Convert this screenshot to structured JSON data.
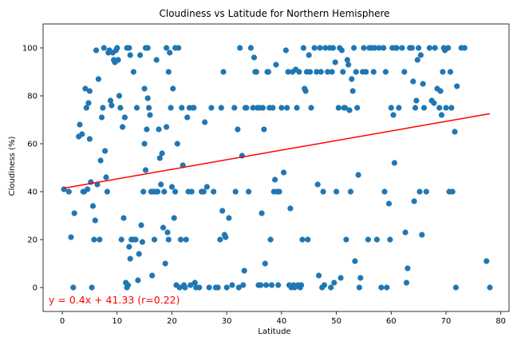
{
  "chart_data": {
    "type": "scatter",
    "title": "Cloudiness vs Latitude for Northern Hemisphere",
    "xlabel": "Latitude",
    "ylabel": "Cloudiness (%)",
    "xlim": [
      -3.5,
      81.5
    ],
    "ylim": [
      -10,
      110
    ],
    "xticks": [
      0,
      10,
      20,
      30,
      40,
      50,
      60,
      70,
      80
    ],
    "yticks": [
      0,
      20,
      40,
      60,
      80,
      100
    ],
    "grid": false,
    "legend": "none",
    "colors": {
      "points": "#1f77b4",
      "regression": "#ff0000",
      "annotation": "#ff0000"
    },
    "regression": {
      "slope": 0.4,
      "intercept": 41.33,
      "x_range": [
        0.3,
        78
      ],
      "label": "y = 0.4x + 41.33 (r=0.22)"
    },
    "points": [
      [
        0.3,
        41
      ],
      [
        1.2,
        40
      ],
      [
        1.6,
        21
      ],
      [
        2.0,
        0
      ],
      [
        2.2,
        31
      ],
      [
        3.0,
        63
      ],
      [
        3.2,
        68
      ],
      [
        3.6,
        64
      ],
      [
        3.8,
        40
      ],
      [
        4.0,
        40
      ],
      [
        4.2,
        83
      ],
      [
        4.4,
        75
      ],
      [
        4.6,
        41
      ],
      [
        4.8,
        77
      ],
      [
        5.0,
        62
      ],
      [
        5.2,
        44
      ],
      [
        5.4,
        0
      ],
      [
        5.6,
        34
      ],
      [
        5.8,
        20
      ],
      [
        6.0,
        28
      ],
      [
        5.0,
        82
      ],
      [
        6.2,
        99
      ],
      [
        6.4,
        43
      ],
      [
        6.6,
        87
      ],
      [
        6.8,
        20
      ],
      [
        7.0,
        53
      ],
      [
        7.2,
        71
      ],
      [
        7.4,
        75
      ],
      [
        7.6,
        100
      ],
      [
        7.8,
        57
      ],
      [
        8.0,
        46
      ],
      [
        8.2,
        40
      ],
      [
        8.4,
        98
      ],
      [
        8.6,
        99
      ],
      [
        8.8,
        78
      ],
      [
        9.0,
        76
      ],
      [
        9.2,
        98
      ],
      [
        9.4,
        95
      ],
      [
        9.6,
        94
      ],
      [
        9.8,
        99
      ],
      [
        10.0,
        100
      ],
      [
        10.2,
        95
      ],
      [
        10.4,
        80
      ],
      [
        10.6,
        75
      ],
      [
        10.8,
        20
      ],
      [
        11.0,
        67
      ],
      [
        11.2,
        29
      ],
      [
        11.4,
        71
      ],
      [
        11.6,
        2
      ],
      [
        11.8,
        0
      ],
      [
        12.0,
        1
      ],
      [
        12.2,
        17
      ],
      [
        12.4,
        12
      ],
      [
        12.6,
        20
      ],
      [
        11.8,
        100
      ],
      [
        12.2,
        100
      ],
      [
        12.4,
        97
      ],
      [
        12.8,
        20
      ],
      [
        13.0,
        90
      ],
      [
        13.2,
        20
      ],
      [
        13.4,
        20
      ],
      [
        13.6,
        75
      ],
      [
        13.8,
        3
      ],
      [
        14.0,
        14
      ],
      [
        14.2,
        97
      ],
      [
        14.4,
        26
      ],
      [
        14.6,
        19
      ],
      [
        14.8,
        40
      ],
      [
        15.0,
        83
      ],
      [
        15.2,
        49
      ],
      [
        15.4,
        66
      ],
      [
        15.6,
        79
      ],
      [
        15.8,
        75
      ],
      [
        16.0,
        72
      ],
      [
        16.2,
        40
      ],
      [
        16.4,
        5
      ],
      [
        16.6,
        40
      ],
      [
        16.8,
        20
      ],
      [
        15.2,
        100
      ],
      [
        15.6,
        100
      ],
      [
        15.0,
        60
      ],
      [
        17.0,
        40
      ],
      [
        17.2,
        95
      ],
      [
        17.4,
        40
      ],
      [
        17.6,
        66
      ],
      [
        17.8,
        54
      ],
      [
        18.0,
        43
      ],
      [
        18.2,
        56
      ],
      [
        18.4,
        25
      ],
      [
        18.6,
        40
      ],
      [
        18.8,
        10
      ],
      [
        19.0,
        67
      ],
      [
        19.2,
        23
      ],
      [
        19.4,
        20
      ],
      [
        19.6,
        98
      ],
      [
        19.8,
        75
      ],
      [
        20.0,
        42
      ],
      [
        20.2,
        83
      ],
      [
        20.4,
        29
      ],
      [
        20.6,
        40
      ],
      [
        20.8,
        1
      ],
      [
        21.0,
        60
      ],
      [
        21.2,
        100
      ],
      [
        21.4,
        0
      ],
      [
        21.6,
        20
      ],
      [
        21.8,
        75
      ],
      [
        22.0,
        51
      ],
      [
        22.2,
        1
      ],
      [
        22.4,
        0
      ],
      [
        22.6,
        20
      ],
      [
        22.8,
        71
      ],
      [
        23.0,
        40
      ],
      [
        23.2,
        75
      ],
      [
        23.4,
        1
      ],
      [
        23.6,
        40
      ],
      [
        23.8,
        75
      ],
      [
        24.0,
        75
      ],
      [
        24.2,
        2
      ],
      [
        24.4,
        0
      ],
      [
        19.0,
        100
      ],
      [
        19.4,
        90
      ],
      [
        20.6,
        100
      ],
      [
        25.0,
        0
      ],
      [
        25.4,
        40
      ],
      [
        25.8,
        40
      ],
      [
        26.0,
        69
      ],
      [
        26.4,
        42
      ],
      [
        26.8,
        0
      ],
      [
        27.2,
        75
      ],
      [
        27.6,
        40
      ],
      [
        28.0,
        0
      ],
      [
        28.4,
        0
      ],
      [
        28.8,
        20
      ],
      [
        29.0,
        75
      ],
      [
        29.2,
        32
      ],
      [
        29.4,
        90
      ],
      [
        29.6,
        22
      ],
      [
        29.8,
        21
      ],
      [
        30.0,
        0
      ],
      [
        30.4,
        29
      ],
      [
        31.0,
        1
      ],
      [
        31.4,
        75
      ],
      [
        31.6,
        40
      ],
      [
        32.0,
        66
      ],
      [
        32.2,
        0
      ],
      [
        32.4,
        100
      ],
      [
        32.8,
        55
      ],
      [
        33.0,
        1
      ],
      [
        33.2,
        7
      ],
      [
        33.4,
        75
      ],
      [
        33.6,
        75
      ],
      [
        34.0,
        40
      ],
      [
        34.4,
        100
      ],
      [
        34.8,
        75
      ],
      [
        35.0,
        96
      ],
      [
        35.2,
        90
      ],
      [
        35.4,
        90
      ],
      [
        35.6,
        75
      ],
      [
        35.8,
        1
      ],
      [
        36.0,
        75
      ],
      [
        36.2,
        1
      ],
      [
        36.4,
        31
      ],
      [
        36.6,
        75
      ],
      [
        36.8,
        66
      ],
      [
        37.0,
        10
      ],
      [
        37.2,
        1
      ],
      [
        37.4,
        90
      ],
      [
        37.6,
        90
      ],
      [
        37.8,
        75
      ],
      [
        38.0,
        20
      ],
      [
        38.2,
        1
      ],
      [
        38.4,
        75
      ],
      [
        38.6,
        40
      ],
      [
        38.8,
        45
      ],
      [
        39.0,
        93
      ],
      [
        39.2,
        40
      ],
      [
        39.4,
        1
      ],
      [
        39.6,
        40
      ],
      [
        40.0,
        75
      ],
      [
        40.4,
        48
      ],
      [
        40.8,
        99
      ],
      [
        41.0,
        75
      ],
      [
        41.2,
        90
      ],
      [
        41.4,
        1
      ],
      [
        41.6,
        33
      ],
      [
        41.8,
        0
      ],
      [
        42.0,
        90
      ],
      [
        42.2,
        1
      ],
      [
        42.4,
        0
      ],
      [
        42.6,
        91
      ],
      [
        42.8,
        75
      ],
      [
        43.0,
        1
      ],
      [
        43.2,
        90
      ],
      [
        43.4,
        0
      ],
      [
        43.6,
        1
      ],
      [
        43.8,
        20
      ],
      [
        44.0,
        100
      ],
      [
        44.2,
        83
      ],
      [
        44.4,
        82
      ],
      [
        44.6,
        90
      ],
      [
        44.8,
        20
      ],
      [
        45.0,
        97
      ],
      [
        45.2,
        90
      ],
      [
        45.4,
        75
      ],
      [
        46.0,
        100
      ],
      [
        46.4,
        90
      ],
      [
        46.6,
        43
      ],
      [
        46.8,
        5
      ],
      [
        47.0,
        100
      ],
      [
        47.2,
        90
      ],
      [
        47.4,
        0
      ],
      [
        47.6,
        40
      ],
      [
        47.8,
        1
      ],
      [
        48.0,
        100
      ],
      [
        48.4,
        90
      ],
      [
        48.8,
        100
      ],
      [
        49.0,
        0
      ],
      [
        49.2,
        90
      ],
      [
        49.4,
        100
      ],
      [
        49.6,
        2
      ],
      [
        49.8,
        94
      ],
      [
        50.0,
        40
      ],
      [
        50.4,
        75
      ],
      [
        50.6,
        100
      ],
      [
        50.8,
        4
      ],
      [
        51.0,
        99
      ],
      [
        51.2,
        90
      ],
      [
        51.4,
        75
      ],
      [
        51.6,
        75
      ],
      [
        51.8,
        20
      ],
      [
        52.0,
        95
      ],
      [
        52.2,
        93
      ],
      [
        52.4,
        74
      ],
      [
        52.6,
        40
      ],
      [
        52.8,
        87
      ],
      [
        53.0,
        82
      ],
      [
        53.2,
        100
      ],
      [
        53.4,
        11
      ],
      [
        53.6,
        90
      ],
      [
        53.8,
        75
      ],
      [
        54.0,
        47
      ],
      [
        54.2,
        0
      ],
      [
        54.4,
        4
      ],
      [
        54.8,
        90
      ],
      [
        55.0,
        100
      ],
      [
        55.4,
        90
      ],
      [
        55.8,
        20
      ],
      [
        56.0,
        100
      ],
      [
        56.4,
        100
      ],
      [
        56.8,
        90
      ],
      [
        57.0,
        100
      ],
      [
        57.4,
        20
      ],
      [
        57.8,
        100
      ],
      [
        58.2,
        0
      ],
      [
        58.6,
        100
      ],
      [
        58.8,
        40
      ],
      [
        59.0,
        90
      ],
      [
        59.2,
        0
      ],
      [
        59.6,
        35
      ],
      [
        59.8,
        20
      ],
      [
        60.0,
        75
      ],
      [
        60.2,
        100
      ],
      [
        60.4,
        72
      ],
      [
        60.6,
        52
      ],
      [
        60.8,
        100
      ],
      [
        61.0,
        100
      ],
      [
        61.4,
        75
      ],
      [
        62.0,
        100
      ],
      [
        62.4,
        90
      ],
      [
        62.6,
        23
      ],
      [
        62.8,
        2
      ],
      [
        63.0,
        8
      ],
      [
        63.4,
        100
      ],
      [
        63.8,
        100
      ],
      [
        64.0,
        86
      ],
      [
        64.2,
        36
      ],
      [
        64.4,
        75
      ],
      [
        64.6,
        78
      ],
      [
        64.8,
        95
      ],
      [
        65.0,
        100
      ],
      [
        65.2,
        40
      ],
      [
        65.4,
        97
      ],
      [
        65.6,
        22
      ],
      [
        65.8,
        85
      ],
      [
        66.0,
        75
      ],
      [
        66.4,
        40
      ],
      [
        67.0,
        100
      ],
      [
        67.4,
        78
      ],
      [
        67.8,
        77
      ],
      [
        68.0,
        100
      ],
      [
        68.4,
        83
      ],
      [
        68.8,
        75
      ],
      [
        69.0,
        82
      ],
      [
        69.2,
        72
      ],
      [
        69.4,
        90
      ],
      [
        69.6,
        100
      ],
      [
        69.8,
        99
      ],
      [
        70.0,
        75
      ],
      [
        70.4,
        100
      ],
      [
        70.6,
        40
      ],
      [
        70.8,
        90
      ],
      [
        71.0,
        75
      ],
      [
        71.2,
        40
      ],
      [
        71.6,
        65
      ],
      [
        71.8,
        0
      ],
      [
        72.0,
        84
      ],
      [
        72.8,
        100
      ],
      [
        73.4,
        100
      ],
      [
        77.4,
        11
      ],
      [
        78.0,
        0
      ]
    ]
  }
}
